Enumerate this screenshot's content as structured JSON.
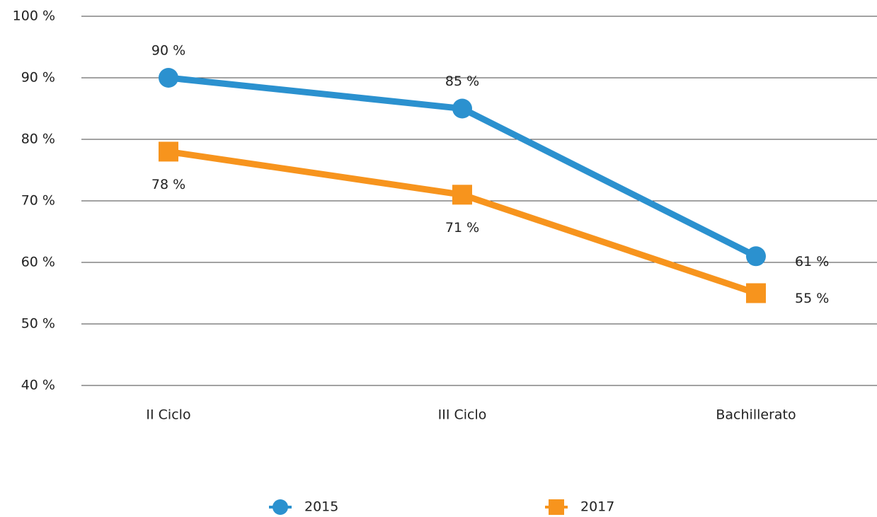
{
  "chart_data": {
    "type": "line",
    "categories": [
      "II Ciclo",
      "III Ciclo",
      "Bachillerato"
    ],
    "series": [
      {
        "name": "2015",
        "color": "#2b91cf",
        "marker": "circle",
        "values": [
          90,
          85,
          61
        ],
        "value_labels": [
          "90 %",
          "85 %",
          "61 %"
        ]
      },
      {
        "name": "2017",
        "color": "#f7941d",
        "marker": "square",
        "values": [
          78,
          71,
          55
        ],
        "value_labels": [
          "78 %",
          "71 %",
          "55 %"
        ]
      }
    ],
    "ylim": [
      40,
      100
    ],
    "yticks": [
      {
        "value": 40,
        "label": "40 %"
      },
      {
        "value": 50,
        "label": "50 %"
      },
      {
        "value": 60,
        "label": "60 %"
      },
      {
        "value": 70,
        "label": "70 %"
      },
      {
        "value": 80,
        "label": "80 %"
      },
      {
        "value": 90,
        "label": "90 %"
      },
      {
        "value": 100,
        "label": "100 %"
      }
    ],
    "grid": true,
    "legend": "bottom"
  }
}
